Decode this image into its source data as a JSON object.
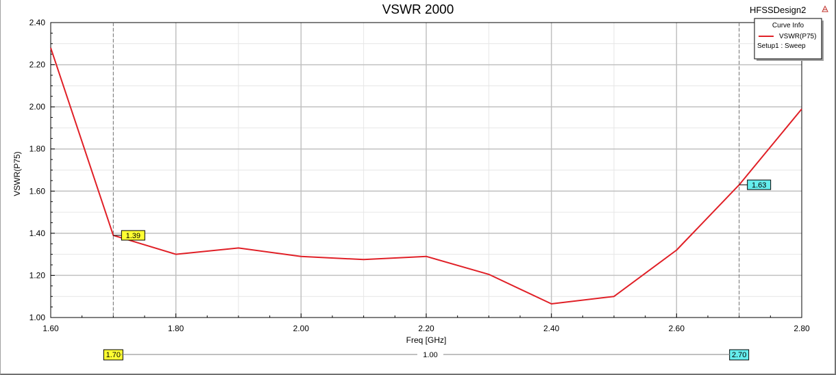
{
  "design_name": "HFSSDesign2",
  "legend": {
    "title": "Curve Info",
    "curve_name": "VSWR(P75)",
    "sweep": "Setup1 : Sweep",
    "placement": "top-right"
  },
  "chart_data": {
    "type": "line",
    "title": "VSWR 2000",
    "xlabel": "Freq [GHz]",
    "ylabel": "VSWR(P75)",
    "xlim": [
      1.6,
      2.8
    ],
    "ylim": [
      1.0,
      2.4
    ],
    "x_ticks": [
      "1.60",
      "1.80",
      "2.00",
      "2.20",
      "2.40",
      "2.60",
      "2.80"
    ],
    "y_ticks": [
      "1.00",
      "1.20",
      "1.40",
      "1.60",
      "1.80",
      "2.00",
      "2.20",
      "2.40"
    ],
    "grid": true,
    "series": [
      {
        "name": "VSWR(P75)",
        "color": "#e01f26",
        "x": [
          1.6,
          1.7,
          1.8,
          1.9,
          2.0,
          2.1,
          2.2,
          2.3,
          2.4,
          2.5,
          2.6,
          2.7,
          2.8
        ],
        "y": [
          2.28,
          1.39,
          1.3,
          1.33,
          1.29,
          1.275,
          1.29,
          1.205,
          1.065,
          1.1,
          1.32,
          1.63,
          1.99
        ]
      }
    ],
    "markers": [
      {
        "x": 1.7,
        "y_label": "1.39",
        "x_label": "1.70",
        "color": "#ffff33"
      },
      {
        "x": 2.7,
        "y_label": "1.63",
        "x_label": "2.70",
        "color": "#66eeee"
      }
    ],
    "delta_label": "1.00"
  }
}
